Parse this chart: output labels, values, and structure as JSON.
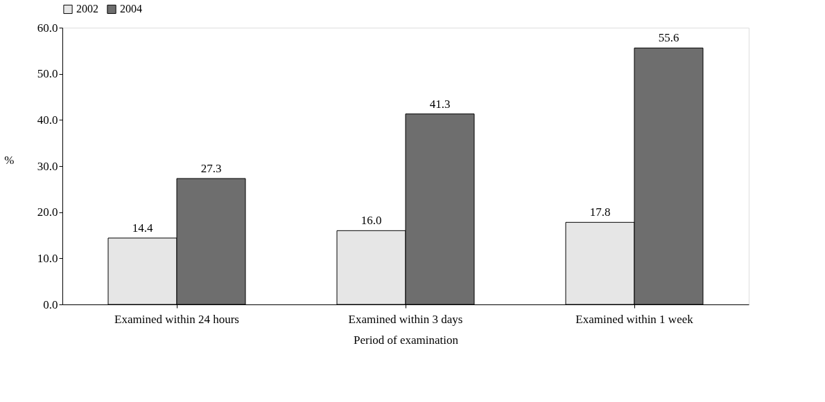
{
  "chart_data": {
    "type": "bar",
    "xlabel": "Period of examination",
    "ylabel": "%",
    "categories": [
      "Examined within 24 hours",
      "Examined within 3 days",
      "Examined within 1 week"
    ],
    "series": [
      {
        "name": "2002",
        "color": "#e6e6e6",
        "values": [
          14.4,
          16.0,
          17.8
        ],
        "value_labels": [
          "14.4",
          "16.0",
          "17.8"
        ]
      },
      {
        "name": "2004",
        "color": "#6e6e6e",
        "values": [
          27.3,
          41.3,
          55.6
        ],
        "value_labels": [
          "27.3",
          "41.3",
          "55.6"
        ]
      }
    ],
    "ylim": [
      0,
      60
    ],
    "yticks": [
      {
        "value": 0,
        "label": "0.0"
      },
      {
        "value": 10,
        "label": "10.0"
      },
      {
        "value": 20,
        "label": "20.0"
      },
      {
        "value": 30,
        "label": "30.0"
      },
      {
        "value": 40,
        "label": "40.0"
      },
      {
        "value": 50,
        "label": "50.0"
      },
      {
        "value": 60,
        "label": "60.0"
      }
    ],
    "grid": false,
    "legend": "top left"
  }
}
